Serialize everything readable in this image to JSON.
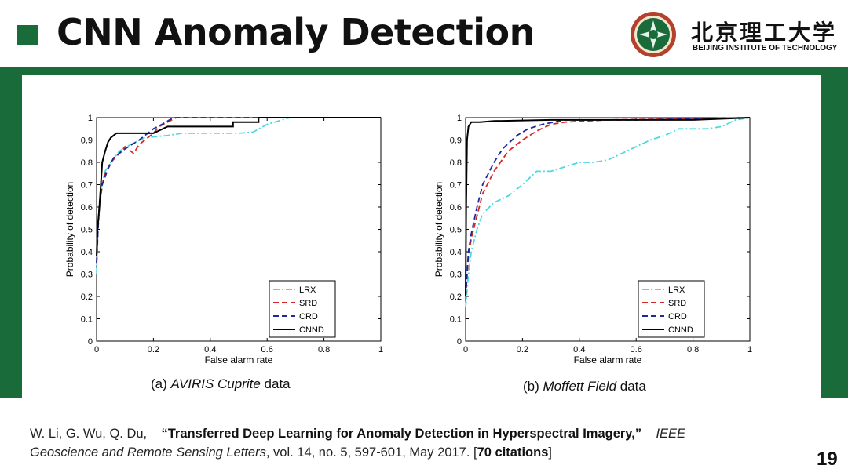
{
  "header": {
    "title": "CNN Anomaly Detection",
    "university_cn": "北京理工大学",
    "university_en": "BEIJING INSTITUTE OF TECHNOLOGY"
  },
  "colors": {
    "brand_green": "#1a6b3a",
    "LRX": "#4dd9e0",
    "SRD": "#d62828",
    "CRD": "#1e2a9c",
    "CNND": "#000000"
  },
  "chart_data": [
    {
      "type": "line",
      "title": "",
      "xlabel": "False alarm rate",
      "ylabel": "Probability of detection",
      "caption_prefix": "(a) ",
      "caption_italic": "AVIRIS Cuprite",
      "caption_suffix": " data",
      "xlim": [
        0,
        1
      ],
      "ylim": [
        0,
        1
      ],
      "x_ticks": [
        "0",
        "0.2",
        "0.4",
        "0.6",
        "0.8",
        "1"
      ],
      "y_ticks": [
        "0",
        "0.1",
        "0.2",
        "0.3",
        "0.4",
        "0.5",
        "0.6",
        "0.7",
        "0.8",
        "0.9",
        "1"
      ],
      "legend_position": "bottom-right",
      "series": [
        {
          "name": "LRX",
          "style": "dashdot",
          "points": [
            [
              0,
              0.3
            ],
            [
              0.005,
              0.5
            ],
            [
              0.01,
              0.6
            ],
            [
              0.02,
              0.7
            ],
            [
              0.03,
              0.76
            ],
            [
              0.05,
              0.8
            ],
            [
              0.08,
              0.85
            ],
            [
              0.12,
              0.88
            ],
            [
              0.17,
              0.91
            ],
            [
              0.25,
              0.92
            ],
            [
              0.3,
              0.93
            ],
            [
              0.4,
              0.93
            ],
            [
              0.5,
              0.93
            ],
            [
              0.55,
              0.935
            ],
            [
              0.6,
              0.97
            ],
            [
              0.68,
              1.0
            ],
            [
              1,
              1.0
            ]
          ]
        },
        {
          "name": "SRD",
          "style": "dashed",
          "points": [
            [
              0,
              0.35
            ],
            [
              0.005,
              0.5
            ],
            [
              0.01,
              0.6
            ],
            [
              0.02,
              0.7
            ],
            [
              0.03,
              0.75
            ],
            [
              0.05,
              0.8
            ],
            [
              0.08,
              0.84
            ],
            [
              0.1,
              0.87
            ],
            [
              0.13,
              0.84
            ],
            [
              0.15,
              0.88
            ],
            [
              0.2,
              0.93
            ],
            [
              0.22,
              0.96
            ],
            [
              0.25,
              0.98
            ],
            [
              0.28,
              1.0
            ],
            [
              1,
              1.0
            ]
          ]
        },
        {
          "name": "CRD",
          "style": "dashed",
          "points": [
            [
              0,
              0.35
            ],
            [
              0.005,
              0.5
            ],
            [
              0.01,
              0.62
            ],
            [
              0.02,
              0.7
            ],
            [
              0.04,
              0.77
            ],
            [
              0.06,
              0.82
            ],
            [
              0.1,
              0.86
            ],
            [
              0.15,
              0.9
            ],
            [
              0.2,
              0.95
            ],
            [
              0.23,
              0.97
            ],
            [
              0.27,
              1.0
            ],
            [
              1,
              1.0
            ]
          ]
        },
        {
          "name": "CNND",
          "style": "solid",
          "points": [
            [
              0,
              0.38
            ],
            [
              0.003,
              0.5
            ],
            [
              0.01,
              0.6
            ],
            [
              0.015,
              0.7
            ],
            [
              0.02,
              0.8
            ],
            [
              0.03,
              0.85
            ],
            [
              0.04,
              0.89
            ],
            [
              0.05,
              0.91
            ],
            [
              0.07,
              0.93
            ],
            [
              0.2,
              0.93
            ],
            [
              0.25,
              0.96
            ],
            [
              0.48,
              0.96
            ],
            [
              0.48,
              0.98
            ],
            [
              0.57,
              0.98
            ],
            [
              0.57,
              1.0
            ],
            [
              1,
              1.0
            ]
          ]
        }
      ]
    },
    {
      "type": "line",
      "title": "",
      "xlabel": "False alarm rate",
      "ylabel": "Probability of detection",
      "caption_prefix": "(b) ",
      "caption_italic": "Moffett Field",
      "caption_suffix": " data",
      "xlim": [
        0,
        1
      ],
      "ylim": [
        0,
        1
      ],
      "x_ticks": [
        "0",
        "0.2",
        "0.4",
        "0.6",
        "0.8",
        "1"
      ],
      "y_ticks": [
        "0",
        "0.1",
        "0.2",
        "0.3",
        "0.4",
        "0.5",
        "0.6",
        "0.7",
        "0.8",
        "0.9",
        "1"
      ],
      "legend_position": "bottom-right",
      "series": [
        {
          "name": "LRX",
          "style": "dashdot",
          "points": [
            [
              0,
              0.15
            ],
            [
              0.01,
              0.3
            ],
            [
              0.02,
              0.4
            ],
            [
              0.04,
              0.5
            ],
            [
              0.06,
              0.57
            ],
            [
              0.1,
              0.62
            ],
            [
              0.15,
              0.65
            ],
            [
              0.2,
              0.7
            ],
            [
              0.25,
              0.76
            ],
            [
              0.3,
              0.76
            ],
            [
              0.35,
              0.78
            ],
            [
              0.4,
              0.8
            ],
            [
              0.45,
              0.8
            ],
            [
              0.5,
              0.81
            ],
            [
              0.55,
              0.84
            ],
            [
              0.6,
              0.87
            ],
            [
              0.65,
              0.9
            ],
            [
              0.7,
              0.92
            ],
            [
              0.75,
              0.95
            ],
            [
              0.85,
              0.95
            ],
            [
              0.9,
              0.96
            ],
            [
              0.95,
              0.99
            ],
            [
              1,
              1.0
            ]
          ]
        },
        {
          "name": "SRD",
          "style": "dashed",
          "points": [
            [
              0,
              0.2
            ],
            [
              0.01,
              0.38
            ],
            [
              0.02,
              0.46
            ],
            [
              0.04,
              0.56
            ],
            [
              0.06,
              0.66
            ],
            [
              0.1,
              0.76
            ],
            [
              0.15,
              0.85
            ],
            [
              0.2,
              0.9
            ],
            [
              0.25,
              0.94
            ],
            [
              0.3,
              0.97
            ],
            [
              0.35,
              0.98
            ],
            [
              0.5,
              0.99
            ],
            [
              1,
              1.0
            ]
          ]
        },
        {
          "name": "CRD",
          "style": "dashed",
          "points": [
            [
              0,
              0.2
            ],
            [
              0.01,
              0.4
            ],
            [
              0.02,
              0.48
            ],
            [
              0.04,
              0.6
            ],
            [
              0.06,
              0.7
            ],
            [
              0.1,
              0.8
            ],
            [
              0.13,
              0.86
            ],
            [
              0.18,
              0.92
            ],
            [
              0.22,
              0.95
            ],
            [
              0.27,
              0.97
            ],
            [
              0.35,
              0.99
            ],
            [
              0.6,
              0.99
            ],
            [
              1,
              1.0
            ]
          ]
        },
        {
          "name": "CNND",
          "style": "solid",
          "points": [
            [
              0,
              0.2
            ],
            [
              0.002,
              0.6
            ],
            [
              0.005,
              0.9
            ],
            [
              0.01,
              0.96
            ],
            [
              0.02,
              0.98
            ],
            [
              0.05,
              0.98
            ],
            [
              0.1,
              0.985
            ],
            [
              0.3,
              0.99
            ],
            [
              0.8,
              0.99
            ],
            [
              1,
              1.0
            ]
          ]
        }
      ]
    }
  ],
  "reference": {
    "authors": "W. Li, G. Wu, Q. Du,",
    "paper_title": "“Transferred Deep Learning for Anomaly Detection in Hyperspectral Imagery,”",
    "journal_line1": "IEEE",
    "journal_line2": "Geoscience and Remote Sensing Letters",
    "details": ", vol. 14, no. 5, 597-601, May 2017. [",
    "citations": "70 citations",
    "close": "]"
  },
  "page_number": "19"
}
